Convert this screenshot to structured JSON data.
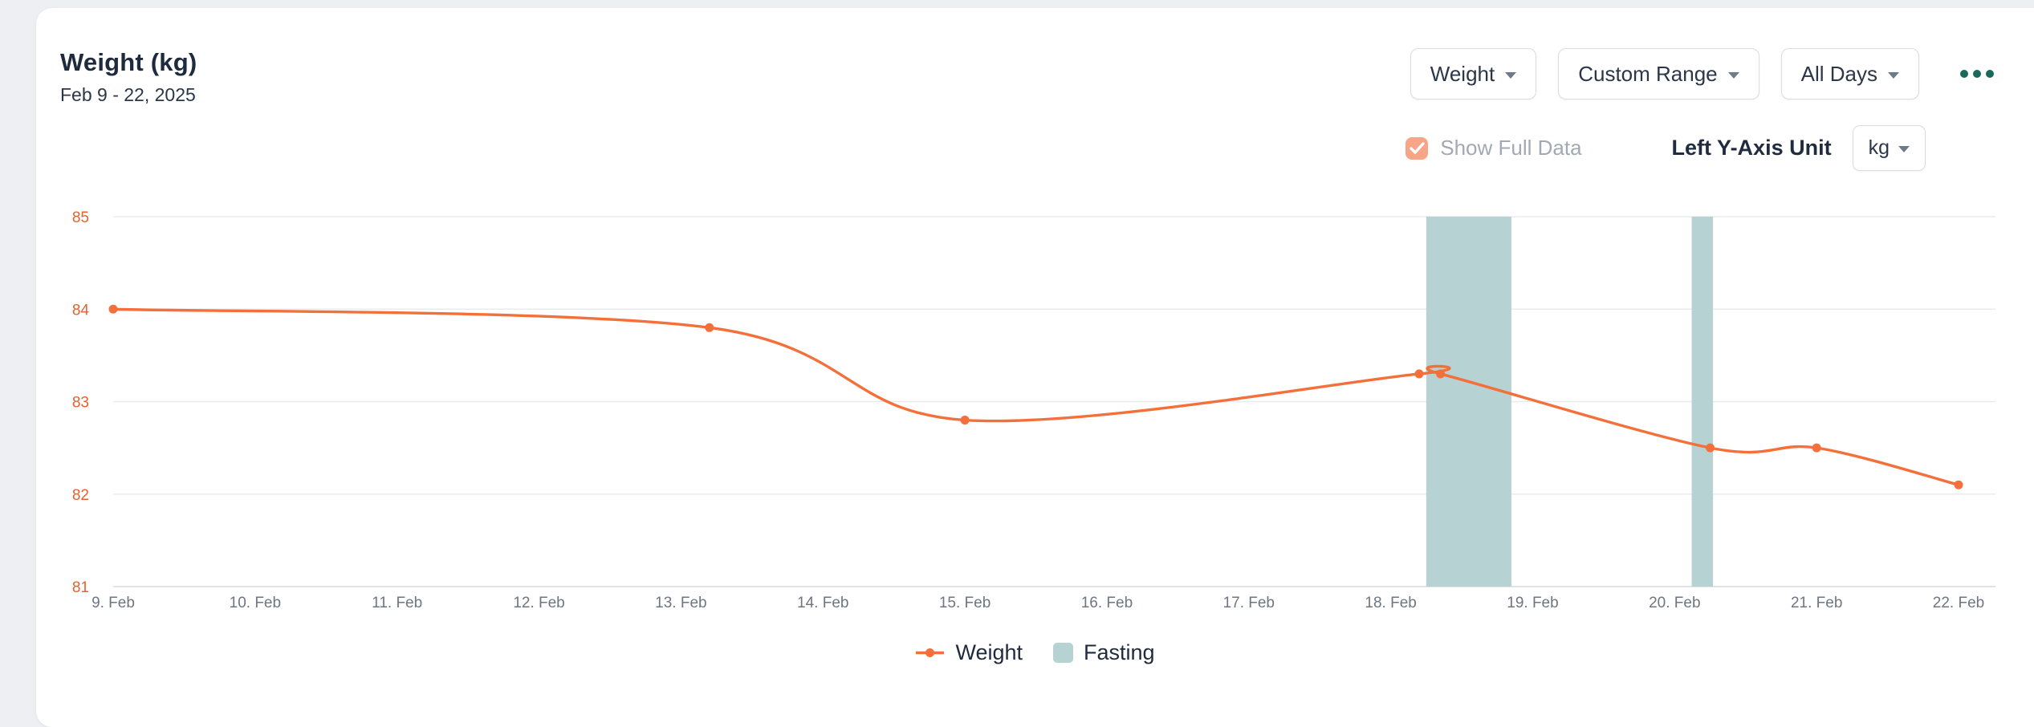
{
  "header": {
    "title": "Weight (kg)",
    "date_range": "Feb 9 - 22, 2025",
    "metric_dropdown": "Weight",
    "range_dropdown": "Custom Range",
    "days_dropdown": "All Days"
  },
  "controls": {
    "show_full_data_label": "Show Full Data",
    "show_full_data_checked": true,
    "y_axis_unit_label": "Left Y-Axis Unit",
    "y_axis_unit_value": "kg"
  },
  "colors": {
    "accent_orange": "#f4703b",
    "band_teal": "#b6d2d2",
    "y_tick_orange": "#e8612c",
    "x_tick_gray": "#6e7682",
    "grid_gray": "#e9ebef",
    "axis_gray": "#d6d9de",
    "menu_dots_green": "#1b6a57",
    "checkbox_fill": "#f8a487"
  },
  "legend": [
    {
      "label": "Weight",
      "type": "line",
      "color": "#f4703b"
    },
    {
      "label": "Fasting",
      "type": "square",
      "color": "#b6d2d2"
    }
  ],
  "chart_data": {
    "type": "line",
    "title": "Weight (kg)",
    "subtitle_range": "Feb 9 - 22, 2025",
    "x_axis": {
      "unit": "date (February 2025)",
      "tick_values": [
        9,
        10,
        11,
        12,
        13,
        14,
        15,
        16,
        17,
        18,
        19,
        20,
        21,
        22
      ],
      "tick_labels": [
        "9. Feb",
        "10. Feb",
        "11. Feb",
        "12. Feb",
        "13. Feb",
        "14. Feb",
        "15. Feb",
        "16. Feb",
        "17. Feb",
        "18. Feb",
        "19. Feb",
        "20. Feb",
        "21. Feb",
        "22. Feb"
      ],
      "range": [
        9,
        22.26
      ]
    },
    "y_axis": {
      "unit": "kg",
      "tick_values": [
        81,
        82,
        83,
        84,
        85
      ],
      "range": [
        81,
        85
      ]
    },
    "grid": "horizontal",
    "legend_position": "bottom",
    "series": [
      {
        "name": "Weight",
        "type": "line",
        "color": "#f4703b",
        "points": [
          [
            9,
            84.0
          ],
          [
            13.2,
            83.8
          ],
          [
            15,
            82.8
          ],
          [
            18.2,
            83.3
          ],
          [
            18.35,
            83.3
          ],
          [
            20.25,
            82.5
          ],
          [
            21,
            82.5
          ],
          [
            22,
            82.1
          ]
        ]
      }
    ],
    "bands": [
      {
        "name": "Fasting",
        "color": "#b6d2d2",
        "x_start": 18.25,
        "x_end": 18.85
      },
      {
        "name": "Fasting",
        "color": "#b6d2d2",
        "x_start": 20.12,
        "x_end": 20.27
      }
    ]
  }
}
